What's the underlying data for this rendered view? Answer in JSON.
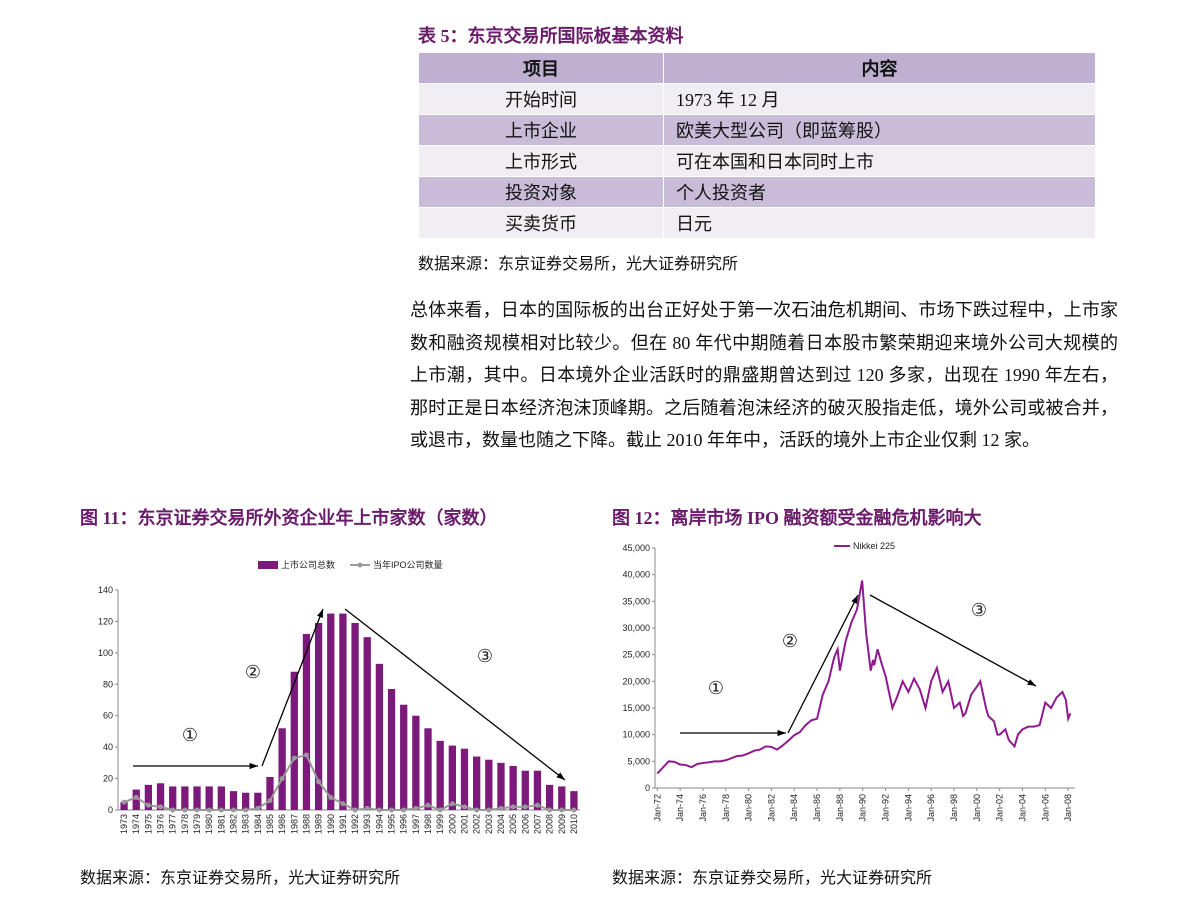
{
  "table": {
    "title": "表 5：东京交易所国际板基本资料",
    "header": [
      "项目",
      "内容"
    ],
    "rows": [
      [
        "开始时间",
        "1973 年 12 月"
      ],
      [
        "上市企业",
        "欧美大型公司（即蓝筹股）"
      ],
      [
        "上市形式",
        "可在本国和日本同时上市"
      ],
      [
        "投资对象",
        "个人投资者"
      ],
      [
        "买卖货币",
        "日元"
      ]
    ],
    "source": "数据来源：东京证券交易所，光大证券研究所"
  },
  "paragraph": "总体来看，日本的国际板的出台正好处于第一次石油危机期间、市场下跌过程中，上市家数和融资规模相对比较少。但在 80 年代中期随着日本股市繁荣期迎来境外公司大规模的上市潮，其中。日本境外企业活跃时的鼎盛期曾达到过 120 多家，出现在 1990 年左右，那时正是日本经济泡沫顶峰期。之后随着泡沫经济的破灭股指走低，境外公司或被合并，或退市，数量也随之下降。截止 2010 年年中，活跃的境外上市企业仅剩 12 家。",
  "chart_data": [
    {
      "type": "bar",
      "title": "图 11：东京证券交易所外资企业年上市家数（家数）",
      "source": "数据来源：东京证券交易所，光大证券研究所",
      "categories": [
        "1973",
        "1974",
        "1975",
        "1976",
        "1977",
        "1978",
        "1979",
        "1980",
        "1981",
        "1982",
        "1983",
        "1984",
        "1985",
        "1986",
        "1987",
        "1988",
        "1989",
        "1990",
        "1991",
        "1992",
        "1993",
        "1994",
        "1995",
        "1996",
        "1997",
        "1998",
        "1999",
        "2000",
        "2001",
        "2002",
        "2003",
        "2004",
        "2005",
        "2006",
        "2007",
        "2008",
        "2009",
        "2010"
      ],
      "series": [
        {
          "name": "上市公司总数",
          "type": "bar",
          "color": "#7b1a7b",
          "values": [
            5,
            13,
            16,
            17,
            15,
            15,
            15,
            15,
            15,
            12,
            11,
            11,
            21,
            52,
            88,
            112,
            119,
            125,
            125,
            119,
            110,
            93,
            77,
            67,
            60,
            52,
            44,
            41,
            39,
            34,
            32,
            30,
            28,
            25,
            25,
            16,
            15,
            12
          ]
        },
        {
          "name": "当年IPO公司数量",
          "type": "line",
          "color": "#999999",
          "values": [
            5,
            8,
            3,
            2,
            0,
            0,
            0,
            0,
            0,
            0,
            0,
            1,
            6,
            20,
            33,
            35,
            18,
            8,
            4,
            0,
            1,
            0,
            0,
            0,
            1,
            3,
            0,
            4,
            2,
            0,
            0,
            1,
            2,
            2,
            3,
            0,
            0,
            0
          ]
        }
      ],
      "ylim": [
        0,
        140
      ],
      "yticks": [
        0,
        20,
        40,
        60,
        80,
        100,
        120,
        140
      ],
      "annotations": [
        "①",
        "②",
        "③"
      ]
    },
    {
      "type": "line",
      "title": "图 12：离岸市场 IPO 融资额受金融危机影响大",
      "source": "数据来源：东京证券交易所，光大证券研究所",
      "x": [
        1972,
        1973,
        1973.5,
        1974,
        1974.5,
        1975,
        1975.5,
        1976,
        1976.5,
        1977,
        1977.5,
        1978,
        1978.5,
        1979,
        1979.5,
        1980,
        1980.5,
        1981,
        1981.5,
        1982,
        1982.5,
        1983,
        1983.5,
        1984,
        1984.5,
        1985,
        1985.5,
        1986,
        1986.5,
        1987,
        1987.5,
        1987.8,
        1988,
        1988.5,
        1989,
        1989.5,
        1989.95,
        1990.3,
        1990.7,
        1990.9,
        1991,
        1991.3,
        1991.7,
        1992,
        1992.6,
        1993,
        1993.5,
        1994,
        1994.5,
        1995,
        1995.5,
        1996,
        1996.5,
        1997,
        1997.5,
        1998,
        1998.5,
        1998.8,
        1999,
        1999.5,
        2000,
        2000.3,
        2000.8,
        2001,
        2001.5,
        2001.8,
        2002,
        2002.5,
        2002.8,
        2003.3,
        2003.6,
        2004,
        2004.5,
        2005,
        2005.5,
        2006,
        2006.5,
        2007,
        2007.5,
        2007.8,
        2008,
        2008.2
      ],
      "series": [
        {
          "name": "Nikkei 225",
          "color": "#8e1a8e",
          "values": [
            2700,
            5000,
            4900,
            4400,
            4300,
            3900,
            4500,
            4700,
            4800,
            5000,
            5000,
            5200,
            5600,
            6000,
            6100,
            6500,
            7000,
            7200,
            7800,
            7700,
            7200,
            8000,
            8900,
            9900,
            10500,
            11800,
            12700,
            13000,
            17500,
            20000,
            24500,
            26000,
            22000,
            27500,
            31000,
            33500,
            38900,
            29000,
            22000,
            24000,
            23000,
            26000,
            23000,
            21000,
            15000,
            17000,
            20000,
            18000,
            20500,
            18500,
            15000,
            20000,
            22500,
            18000,
            20000,
            15000,
            16000,
            13500,
            14000,
            17500,
            19000,
            20000,
            15000,
            13500,
            12500,
            10000,
            10000,
            11000,
            9000,
            7800,
            10000,
            11000,
            11500,
            11500,
            11800,
            16000,
            15000,
            17000,
            18000,
            16500,
            13000,
            14000
          ]
        }
      ],
      "xlim": [
        1971.8,
        2008.6
      ],
      "xticks": [
        {
          "value": 1972,
          "label": "Jan-72"
        },
        {
          "value": 1974,
          "label": "Jan-74"
        },
        {
          "value": 1976,
          "label": "Jan-76"
        },
        {
          "value": 1978,
          "label": "Jan-78"
        },
        {
          "value": 1980,
          "label": "Jan-80"
        },
        {
          "value": 1982,
          "label": "Jan-82"
        },
        {
          "value": 1984,
          "label": "Jan-84"
        },
        {
          "value": 1986,
          "label": "Jan-86"
        },
        {
          "value": 1988,
          "label": "Jan-88"
        },
        {
          "value": 1990,
          "label": "Jan-90"
        },
        {
          "value": 1992,
          "label": "Jan-92"
        },
        {
          "value": 1994,
          "label": "Jan-94"
        },
        {
          "value": 1996,
          "label": "Jan-96"
        },
        {
          "value": 1998,
          "label": "Jan-98"
        },
        {
          "value": 2000,
          "label": "Jan-00"
        },
        {
          "value": 2002,
          "label": "Jan-02"
        },
        {
          "value": 2004,
          "label": "Jan-04"
        },
        {
          "value": 2006,
          "label": "Jan-06"
        },
        {
          "value": 2008,
          "label": "Jan-08"
        }
      ],
      "ylim": [
        0,
        45000
      ],
      "yticks": [
        0,
        {
          "value": 5000,
          "label": "5,000"
        },
        {
          "value": 10000,
          "label": "10,000"
        },
        {
          "value": 15000,
          "label": "15,000"
        },
        {
          "value": 20000,
          "label": "20,000"
        },
        {
          "value": 25000,
          "label": "25,000"
        },
        {
          "value": 30000,
          "label": "30,000"
        },
        {
          "value": 35000,
          "label": "35,000"
        },
        {
          "value": 40000,
          "label": "40,000"
        },
        {
          "value": 45000,
          "label": "45,000"
        }
      ],
      "annotations": [
        "①",
        "②",
        "③"
      ]
    }
  ]
}
